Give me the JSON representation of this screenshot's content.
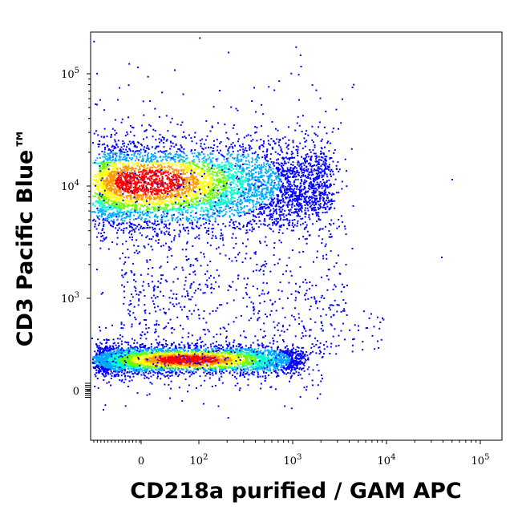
{
  "chart_data": {
    "type": "scatter",
    "style": "density-dot-plot",
    "xlabel": "CD218a purified / GAM APC",
    "ylabel": "CD3 Pacific Blue™",
    "x_scale": "biexponential",
    "y_scale": "biexponential",
    "x_ticks": [
      {
        "label": "0",
        "value": 0
      },
      {
        "label": "10",
        "exp": "2",
        "value": 100
      },
      {
        "label": "10",
        "exp": "3",
        "value": 1000
      },
      {
        "label": "10",
        "exp": "4",
        "value": 10000
      },
      {
        "label": "10",
        "exp": "5",
        "value": 100000
      }
    ],
    "y_ticks": [
      {
        "label": "0",
        "value": 0
      },
      {
        "label": "10",
        "exp": "3",
        "value": 1000
      },
      {
        "label": "10",
        "exp": "4",
        "value": 10000
      },
      {
        "label": "10",
        "exp": "5",
        "value": 100000
      }
    ],
    "density_colors": [
      "#0000ff",
      "#00aaff",
      "#00ffcc",
      "#66ff00",
      "#ffff00",
      "#ff9900",
      "#ff0000"
    ],
    "populations": [
      {
        "description": "CD3-high cluster",
        "x_range": [
          -40,
          2500
        ],
        "y_center": 10000,
        "y_range": [
          5000,
          18000
        ],
        "peak_x": 10,
        "peak_y": 11000,
        "relative_size": 1.0
      },
      {
        "description": "CD3-negative cluster",
        "x_range": [
          -40,
          1200
        ],
        "y_center": 340,
        "y_range": [
          250,
          480
        ],
        "peak_x": 80,
        "peak_y": 340,
        "relative_size": 0.75
      }
    ]
  }
}
